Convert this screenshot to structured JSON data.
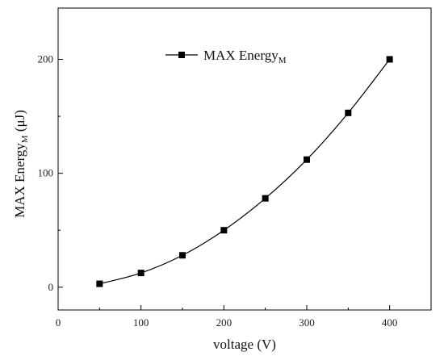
{
  "chart_data": {
    "type": "line",
    "xlabel": "voltage (V)",
    "ylabel": {
      "main": "MAX Energy",
      "sub": "M",
      "unit": " (μJ)"
    },
    "xlim": [
      0,
      450
    ],
    "ylim": [
      -20,
      245
    ],
    "xticks": [
      0,
      100,
      200,
      300,
      400
    ],
    "yticks": [
      0,
      100,
      200
    ],
    "grid": false,
    "legend_position": "top-center",
    "series": [
      {
        "name": {
          "main": "MAX Energy",
          "sub": "M"
        },
        "marker": "square",
        "color": "#000000",
        "x": [
          50,
          100,
          150,
          200,
          250,
          300,
          350,
          400
        ],
        "y": [
          3,
          12.5,
          28,
          50,
          78,
          112,
          153,
          200
        ]
      }
    ]
  }
}
